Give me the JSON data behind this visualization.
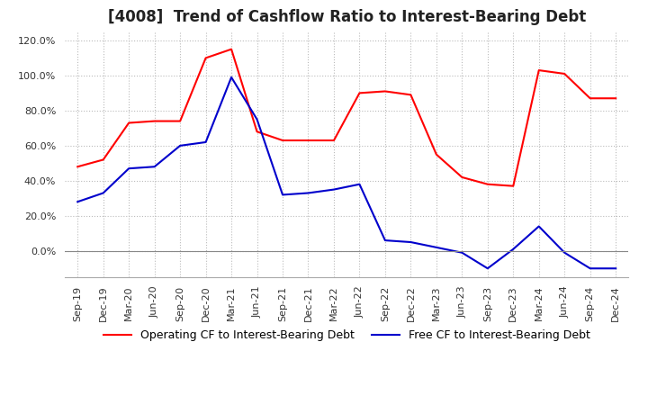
{
  "title": "[4008]  Trend of Cashflow Ratio to Interest-Bearing Debt",
  "x_labels": [
    "Sep-19",
    "Dec-19",
    "Mar-20",
    "Jun-20",
    "Sep-20",
    "Dec-20",
    "Mar-21",
    "Jun-21",
    "Sep-21",
    "Dec-21",
    "Mar-22",
    "Jun-22",
    "Sep-22",
    "Dec-22",
    "Mar-23",
    "Jun-23",
    "Sep-23",
    "Dec-23",
    "Mar-24",
    "Jun-24",
    "Sep-24",
    "Dec-24"
  ],
  "operating_cf": [
    48,
    52,
    73,
    74,
    74,
    110,
    115,
    68,
    63,
    63,
    63,
    90,
    91,
    89,
    55,
    42,
    38,
    37,
    103,
    101,
    87,
    87
  ],
  "free_cf": [
    28,
    33,
    47,
    48,
    60,
    62,
    99,
    75,
    32,
    33,
    35,
    38,
    6,
    5,
    2,
    -1,
    -10,
    1,
    14,
    -1,
    -10,
    -10
  ],
  "operating_color": "#FF0000",
  "free_color": "#0000CC",
  "ylim": [
    -15,
    125
  ],
  "yticks": [
    0,
    20,
    40,
    60,
    80,
    100,
    120
  ],
  "ytick_labels": [
    "0.0%",
    "20.0%",
    "40.0%",
    "60.0%",
    "80.0%",
    "100.0%",
    "120.0%"
  ],
  "legend_operating": "Operating CF to Interest-Bearing Debt",
  "legend_free": "Free CF to Interest-Bearing Debt",
  "bg_color": "#FFFFFF",
  "grid_color": "#BBBBBB",
  "title_fontsize": 12,
  "tick_fontsize": 8,
  "legend_fontsize": 9
}
